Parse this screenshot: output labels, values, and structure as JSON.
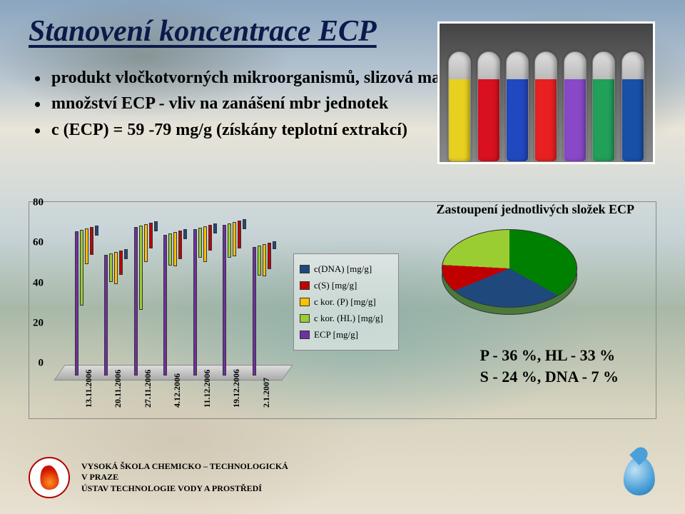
{
  "title": "Stanovení koncentrace ECP",
  "bullets": [
    "produkt vločkotvorných mikroorganismů, slizová matrice, základ vloček",
    "množství ECP - vliv na zanášení mbr jednotek",
    "c (ECP) = 59 -79 mg/g (získány teplotní extrakcí)"
  ],
  "tube_colors": [
    "#e8d020",
    "#d81020",
    "#2048c0",
    "#e82020",
    "#8848c8",
    "#20a058",
    "#1850a8"
  ],
  "bar_chart": {
    "y_ticks": [
      0,
      20,
      40,
      60,
      80
    ],
    "y_max": 80,
    "dates": [
      "13.11.2006",
      "20.11.2006",
      "27.11.2006",
      "4.12.2006",
      "11.12.2006",
      "19.12.2006",
      "2.1.2007"
    ],
    "series_colors": {
      "ecp": "#7030a0",
      "hl": "#9acd32",
      "p": "#ffc000",
      "s": "#c00000",
      "dna": "#1f497d"
    },
    "values": [
      {
        "ecp": 72,
        "hl": 38,
        "p": 18,
        "s": 14,
        "dna": 5
      },
      {
        "ecp": 60,
        "hl": 14,
        "p": 16,
        "s": 12,
        "dna": 5
      },
      {
        "ecp": 74,
        "hl": 42,
        "p": 19,
        "s": 13,
        "dna": 5
      },
      {
        "ecp": 70,
        "hl": 16,
        "p": 17,
        "s": 14,
        "dna": 5
      },
      {
        "ecp": 73,
        "hl": 15,
        "p": 18,
        "s": 13,
        "dna": 5
      },
      {
        "ecp": 75,
        "hl": 17,
        "p": 17,
        "s": 14,
        "dna": 5
      },
      {
        "ecp": 64,
        "hl": 15,
        "p": 16,
        "s": 13,
        "dna": 4
      }
    ],
    "legend": [
      {
        "key": "dna",
        "label": "c(DNA) [mg/g]"
      },
      {
        "key": "s",
        "label": "c(S) [mg/g]"
      },
      {
        "key": "p",
        "label": "c kor. (P) [mg/g]"
      },
      {
        "key": "hl",
        "label": "c kor. (HL) [mg/g]"
      },
      {
        "key": "ecp",
        "label": "ECP [mg/g]"
      }
    ]
  },
  "pie": {
    "title": "Zastoupení jednotlivých složek ECP",
    "colors": {
      "p": "#1f497d",
      "hl": "#008000",
      "s": "#9acd32",
      "dna": "#c00000"
    },
    "text_line1": "P - 36 %, HL - 33 %",
    "text_line2": "S - 24 %, DNA  - 7 %"
  },
  "footer": {
    "line1": "VYSOKÁ ŠKOLA CHEMICKO – TECHNOLOGICKÁ",
    "line2": "V PRAZE",
    "line3": "ÚSTAV TECHNOLOGIE VODY A PROSTŘEDÍ"
  }
}
